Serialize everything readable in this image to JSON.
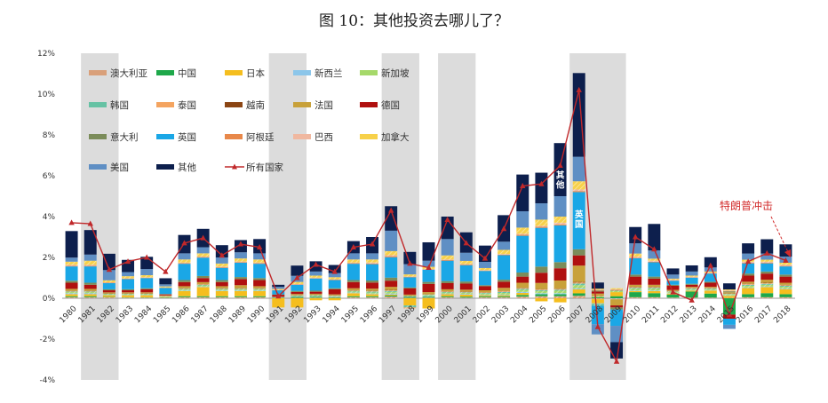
{
  "title": "图 10：其他投资去哪儿了？",
  "annotation": "特朗普冲击",
  "chart_data": {
    "type": "bar",
    "stacked": true,
    "years": [
      "1980",
      "1981",
      "1982",
      "1983",
      "1984",
      "1985",
      "1986",
      "1987",
      "1988",
      "1989",
      "1990",
      "1991",
      "1992",
      "1993",
      "1994",
      "1995",
      "1996",
      "1997",
      "1998",
      "1999",
      "2000",
      "2001",
      "2002",
      "2003",
      "2004",
      "2005",
      "2006",
      "2007",
      "2008",
      "2009",
      "2010",
      "2011",
      "2012",
      "2013",
      "2014",
      "2015",
      "2016",
      "2017",
      "2018"
    ],
    "ylim": [
      -4,
      12
    ],
    "yticks": [
      "-4%",
      "-2%",
      "0%",
      "2%",
      "4%",
      "6%",
      "8%",
      "10%",
      "12%"
    ],
    "shaded_periods": [
      [
        "1981",
        "1982"
      ],
      [
        "1991",
        "1992"
      ],
      [
        "1997",
        "1998"
      ],
      [
        "2000",
        "2001"
      ],
      [
        "2007",
        "2009"
      ]
    ],
    "segment_labels": [
      {
        "year": "2006",
        "text": "其他"
      },
      {
        "year": "2007",
        "text": "英国"
      }
    ],
    "series": [
      {
        "name": "澳大利亚",
        "color": "#d9a07a",
        "values": [
          0.05,
          0.05,
          0.05,
          0.03,
          0.03,
          0.02,
          0.05,
          0.05,
          0.05,
          0.05,
          0.05,
          0.0,
          0.02,
          0.03,
          0.02,
          0.05,
          0.05,
          0.08,
          0.02,
          0.03,
          0.05,
          0.03,
          0.05,
          0.05,
          0.08,
          0.1,
          0.1,
          0.12,
          -0.05,
          -0.03,
          0.05,
          0.05,
          0.03,
          0.03,
          0.03,
          0.02,
          0.05,
          0.05,
          0.05
        ]
      },
      {
        "name": "中国",
        "color": "#1ea84a",
        "values": [
          0.05,
          0.05,
          0.02,
          0.02,
          0.02,
          0.02,
          0.05,
          0.05,
          0.05,
          0.05,
          0.05,
          0.02,
          0.05,
          0.05,
          0.03,
          0.05,
          0.05,
          0.05,
          0.05,
          0.05,
          0.05,
          0.05,
          0.05,
          0.05,
          0.08,
          0.1,
          0.1,
          0.12,
          0.05,
          0.1,
          0.25,
          0.2,
          0.15,
          0.3,
          0.2,
          -0.8,
          0.15,
          0.2,
          0.15
        ]
      },
      {
        "name": "日本",
        "color": "#f5be1e",
        "values": [
          0.1,
          0.1,
          0.08,
          0.1,
          0.1,
          0.02,
          0.25,
          0.45,
          0.25,
          0.25,
          0.25,
          -0.45,
          -0.45,
          -0.1,
          -0.1,
          0.15,
          0.1,
          0.05,
          -0.35,
          -0.5,
          0.1,
          0.1,
          0.05,
          0.05,
          0.1,
          -0.15,
          -0.2,
          0.2,
          -0.2,
          0.2,
          0.05,
          0.1,
          0.05,
          0.05,
          0.15,
          0.1,
          0.3,
          0.3,
          0.25
        ]
      },
      {
        "name": "新西兰",
        "color": "#8cc6ea",
        "values": [
          0.05,
          0.05,
          0.02,
          0.02,
          0.02,
          0.01,
          0.03,
          0.03,
          0.03,
          0.03,
          0.03,
          0.01,
          0.02,
          0.02,
          0.02,
          0.03,
          0.03,
          0.05,
          0.02,
          0.03,
          0.03,
          0.03,
          0.03,
          0.03,
          0.05,
          0.05,
          0.05,
          0.05,
          -0.02,
          -0.02,
          0.03,
          0.03,
          0.02,
          0.02,
          0.02,
          0.02,
          0.03,
          0.03,
          0.03
        ]
      },
      {
        "name": "新加坡",
        "color": "#a6d96a",
        "values": [
          0.05,
          0.05,
          0.03,
          0.03,
          0.03,
          0.02,
          0.05,
          0.05,
          0.05,
          0.05,
          0.05,
          0.02,
          0.03,
          0.03,
          0.03,
          0.05,
          0.05,
          0.08,
          0.03,
          0.05,
          0.05,
          0.05,
          0.05,
          0.08,
          0.1,
          0.1,
          0.12,
          0.15,
          0.05,
          0.05,
          0.08,
          0.08,
          0.05,
          0.05,
          0.05,
          0.05,
          0.08,
          0.08,
          0.08
        ]
      },
      {
        "name": "韩国",
        "color": "#66c2a4",
        "values": [
          0.03,
          0.03,
          0.02,
          0.02,
          0.02,
          0.01,
          0.03,
          0.03,
          0.03,
          0.03,
          0.03,
          0.01,
          0.02,
          0.02,
          0.02,
          0.03,
          0.05,
          0.05,
          -0.1,
          0.02,
          0.03,
          0.03,
          0.03,
          0.05,
          0.05,
          0.05,
          0.05,
          0.08,
          -0.1,
          0.02,
          0.05,
          0.05,
          0.03,
          0.03,
          0.03,
          0.02,
          0.05,
          0.05,
          0.05
        ]
      },
      {
        "name": "泰国",
        "color": "#f4a460",
        "values": [
          0.02,
          0.02,
          0.01,
          0.01,
          0.01,
          0.01,
          0.02,
          0.02,
          0.02,
          0.02,
          0.02,
          0.01,
          0.01,
          0.01,
          0.01,
          0.02,
          0.03,
          0.03,
          -0.05,
          0.01,
          0.02,
          0.02,
          0.02,
          0.03,
          0.03,
          0.03,
          0.03,
          0.05,
          0.02,
          0.02,
          0.03,
          0.03,
          0.02,
          0.02,
          0.02,
          0.02,
          0.03,
          0.03,
          0.03
        ]
      },
      {
        "name": "越南",
        "color": "#8b4513",
        "values": [
          0.01,
          0.01,
          0.01,
          0.01,
          0.01,
          0.0,
          0.01,
          0.01,
          0.01,
          0.01,
          0.01,
          0.0,
          0.01,
          0.01,
          0.01,
          0.01,
          0.01,
          0.02,
          0.01,
          0.01,
          0.01,
          0.01,
          0.01,
          0.02,
          0.02,
          0.02,
          0.02,
          0.03,
          0.01,
          0.01,
          0.02,
          0.02,
          0.01,
          0.01,
          0.01,
          0.01,
          0.02,
          0.02,
          0.02
        ]
      },
      {
        "name": "法国",
        "color": "#c8a13a",
        "values": [
          0.1,
          0.1,
          0.05,
          0.05,
          0.05,
          0.03,
          0.1,
          0.1,
          0.1,
          0.15,
          0.1,
          0.0,
          0.05,
          0.05,
          0.05,
          0.1,
          0.1,
          0.15,
          0.05,
          0.1,
          0.1,
          0.1,
          0.1,
          0.15,
          0.25,
          0.3,
          0.4,
          0.8,
          0.1,
          -0.3,
          0.1,
          0.1,
          0.05,
          0.05,
          0.05,
          0.05,
          0.1,
          0.15,
          0.1
        ]
      },
      {
        "name": "德国",
        "color": "#b0100f",
        "values": [
          0.3,
          0.2,
          0.1,
          0.1,
          0.15,
          0.05,
          0.2,
          0.2,
          0.2,
          0.3,
          0.3,
          0.1,
          0.1,
          0.1,
          0.25,
          0.3,
          0.3,
          0.3,
          0.3,
          0.4,
          0.3,
          0.3,
          0.2,
          0.3,
          0.3,
          0.5,
          0.6,
          0.5,
          0.1,
          -0.1,
          0.4,
          0.3,
          0.2,
          0.1,
          0.2,
          -0.2,
          0.3,
          0.3,
          0.3
        ]
      },
      {
        "name": "意大利",
        "color": "#7b8c5a",
        "values": [
          0.1,
          0.1,
          0.05,
          0.05,
          0.05,
          0.02,
          0.1,
          0.1,
          0.1,
          0.1,
          0.1,
          0.02,
          0.05,
          0.05,
          0.05,
          0.1,
          0.1,
          0.15,
          0.05,
          0.1,
          0.1,
          0.1,
          0.05,
          0.1,
          0.2,
          0.3,
          0.3,
          0.3,
          0.05,
          -0.1,
          0.1,
          0.1,
          0.05,
          0.05,
          0.05,
          0.05,
          0.1,
          0.1,
          0.1
        ]
      },
      {
        "name": "英国",
        "color": "#1aa7e6",
        "values": [
          0.7,
          0.8,
          0.3,
          0.5,
          0.5,
          0.3,
          0.8,
          0.9,
          0.6,
          0.7,
          0.7,
          0.2,
          0.3,
          0.6,
          0.4,
          0.8,
          0.8,
          1.0,
          0.5,
          0.6,
          1.0,
          0.8,
          0.7,
          1.2,
          1.8,
          1.9,
          1.8,
          2.8,
          -0.9,
          -0.8,
          0.8,
          0.7,
          0.2,
          0.3,
          0.4,
          -0.3,
          0.5,
          0.4,
          0.4
        ]
      },
      {
        "name": "阿根廷",
        "color": "#e8884a",
        "values": [
          0.03,
          0.03,
          0.02,
          0.02,
          0.02,
          0.01,
          0.03,
          0.03,
          0.03,
          0.03,
          0.03,
          0.01,
          0.02,
          0.02,
          0.02,
          0.03,
          0.03,
          0.05,
          0.02,
          0.02,
          0.03,
          0.03,
          0.02,
          0.03,
          0.05,
          0.05,
          0.05,
          0.05,
          0.02,
          0.02,
          0.03,
          0.03,
          0.02,
          0.02,
          0.02,
          0.02,
          0.03,
          0.03,
          0.03
        ]
      },
      {
        "name": "巴西",
        "color": "#f0b8a0",
        "values": [
          0.05,
          0.05,
          0.02,
          0.02,
          0.02,
          0.01,
          0.03,
          0.03,
          0.03,
          0.03,
          0.03,
          0.01,
          0.02,
          0.02,
          0.02,
          0.03,
          0.05,
          0.05,
          0.02,
          0.02,
          0.03,
          0.03,
          0.02,
          0.03,
          0.05,
          0.05,
          0.08,
          0.08,
          0.02,
          0.02,
          0.05,
          0.05,
          0.03,
          0.03,
          0.03,
          0.02,
          0.05,
          0.05,
          0.05
        ]
      },
      {
        "name": "加拿大",
        "color": "#f7d14a",
        "values": [
          0.15,
          0.2,
          0.1,
          0.1,
          0.1,
          0.05,
          0.15,
          0.15,
          0.15,
          0.15,
          0.15,
          0.05,
          0.1,
          0.1,
          0.1,
          0.15,
          0.15,
          0.2,
          0.1,
          0.1,
          0.2,
          0.15,
          0.1,
          0.2,
          0.3,
          0.3,
          0.3,
          0.4,
          0.05,
          0.05,
          0.15,
          0.1,
          0.05,
          0.05,
          0.05,
          0.05,
          0.1,
          0.1,
          0.1
        ]
      },
      {
        "name": "美国",
        "color": "#5f8fc4",
        "values": [
          0.2,
          0.3,
          0.5,
          0.2,
          0.3,
          0.1,
          0.3,
          0.3,
          0.3,
          0.3,
          0.3,
          0.1,
          0.3,
          0.2,
          0.2,
          0.3,
          0.3,
          1.0,
          0.5,
          0.3,
          0.8,
          0.4,
          0.3,
          0.4,
          0.8,
          0.8,
          1.0,
          1.2,
          -0.5,
          -0.8,
          0.5,
          0.4,
          0.2,
          0.2,
          0.2,
          -0.2,
          0.3,
          0.3,
          0.3
        ]
      },
      {
        "name": "其他",
        "color": "#0d1f4d",
        "values": [
          1.3,
          1.2,
          0.8,
          0.6,
          0.6,
          0.3,
          0.9,
          0.9,
          0.6,
          0.6,
          0.7,
          0.1,
          0.5,
          0.5,
          0.4,
          0.6,
          0.8,
          1.2,
          0.6,
          0.9,
          1.1,
          1.0,
          0.8,
          1.3,
          1.8,
          1.5,
          2.6,
          4.1,
          0.3,
          -0.8,
          0.8,
          1.3,
          0.3,
          0.3,
          0.5,
          0.3,
          0.5,
          0.7,
          0.6
        ]
      }
    ],
    "total": {
      "name": "所有国家",
      "color": "#c0282a",
      "values": [
        3.7,
        3.65,
        1.4,
        1.8,
        2.0,
        1.3,
        2.7,
        2.95,
        2.1,
        2.65,
        2.5,
        0.1,
        1.0,
        1.65,
        1.3,
        2.5,
        2.65,
        4.3,
        1.7,
        1.5,
        3.85,
        2.7,
        1.95,
        3.4,
        5.5,
        5.6,
        6.5,
        10.2,
        -1.4,
        -3.1,
        3.0,
        2.4,
        0.3,
        -0.1,
        1.6,
        -0.8,
        1.8,
        2.2,
        1.85
      ]
    }
  }
}
